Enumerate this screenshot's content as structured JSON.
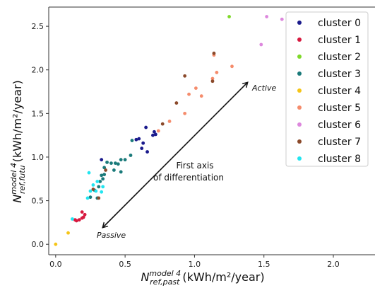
{
  "chart_data": {
    "type": "scatter",
    "xlabel": "(kWh/m²/year)",
    "xlabel_math": {
      "base": "N",
      "sup": "model 4",
      "sub": "ref,past"
    },
    "ylabel": "(kWh/m²/year)",
    "ylabel_math": {
      "base": "N",
      "sup": "model 4",
      "sub": "ref,futu"
    },
    "xlim": [
      -0.05,
      2.3
    ],
    "ylim": [
      -0.12,
      2.72
    ],
    "xticks": [
      "0.0",
      "0.5",
      "1.0",
      "1.5",
      "2.0"
    ],
    "xtick_values": [
      0,
      0.5,
      1.0,
      1.5,
      2.0
    ],
    "yticks": [
      "0.0",
      "0.5",
      "1.0",
      "1.5",
      "2.0",
      "2.5"
    ],
    "ytick_values": [
      0,
      0.5,
      1.0,
      1.5,
      2.0,
      2.5
    ],
    "grid": false,
    "legend_position": "top-right",
    "annotations": {
      "axis_text_line1": "First axis",
      "axis_text_line2": "of differentiation",
      "active": "Active",
      "passive": "Passive"
    },
    "series": [
      {
        "name": "cluster 0",
        "color": "#1a1a8c",
        "points": [
          [
            0.33,
            0.97
          ],
          [
            0.58,
            1.2
          ],
          [
            0.6,
            1.21
          ],
          [
            0.63,
            1.16
          ],
          [
            0.65,
            1.34
          ],
          [
            0.66,
            1.06
          ],
          [
            0.7,
            1.25
          ],
          [
            0.71,
            1.29
          ],
          [
            0.72,
            1.26
          ],
          [
            0.62,
            1.1
          ]
        ]
      },
      {
        "name": "cluster 1",
        "color": "#d7193f",
        "points": [
          [
            0.14,
            0.28
          ],
          [
            0.17,
            0.28
          ],
          [
            0.19,
            0.3
          ],
          [
            0.19,
            0.37
          ],
          [
            0.21,
            0.34
          ],
          [
            0.2,
            0.31
          ],
          [
            0.15,
            0.27
          ]
        ]
      },
      {
        "name": "cluster 2",
        "color": "#7fd92a",
        "points": [
          [
            1.25,
            2.61
          ]
        ]
      },
      {
        "name": "cluster 3",
        "color": "#1a7a7a",
        "points": [
          [
            0.25,
            0.54
          ],
          [
            0.28,
            0.62
          ],
          [
            0.31,
            0.66
          ],
          [
            0.32,
            0.72
          ],
          [
            0.33,
            0.79
          ],
          [
            0.35,
            0.8
          ],
          [
            0.35,
            0.88
          ],
          [
            0.37,
            0.94
          ],
          [
            0.4,
            0.93
          ],
          [
            0.42,
            0.85
          ],
          [
            0.43,
            0.93
          ],
          [
            0.45,
            0.92
          ],
          [
            0.47,
            0.83
          ],
          [
            0.47,
            0.97
          ],
          [
            0.5,
            0.97
          ],
          [
            0.54,
            1.02
          ],
          [
            0.55,
            1.19
          ],
          [
            0.3,
            0.53
          ],
          [
            0.34,
            0.75
          ]
        ]
      },
      {
        "name": "cluster 4",
        "color": "#f5c518",
        "points": [
          [
            0.0,
            0.0
          ],
          [
            0.09,
            0.13
          ]
        ]
      },
      {
        "name": "cluster 5",
        "color": "#f58c6c",
        "points": [
          [
            0.93,
            1.5
          ],
          [
            0.96,
            1.72
          ],
          [
            1.01,
            1.79
          ],
          [
            1.05,
            1.7
          ],
          [
            1.13,
            1.9
          ],
          [
            1.14,
            2.17
          ],
          [
            1.16,
            1.97
          ],
          [
            1.27,
            2.04
          ],
          [
            0.74,
            1.3
          ],
          [
            0.82,
            1.41
          ]
        ]
      },
      {
        "name": "cluster 6",
        "color": "#dd88dd",
        "points": [
          [
            1.48,
            2.29
          ],
          [
            1.52,
            2.61
          ],
          [
            1.63,
            2.58
          ]
        ]
      },
      {
        "name": "cluster 7",
        "color": "#8b4a2b",
        "points": [
          [
            0.27,
            0.63
          ],
          [
            0.31,
            0.53
          ],
          [
            0.77,
            1.38
          ],
          [
            0.87,
            1.62
          ],
          [
            0.93,
            1.93
          ],
          [
            1.13,
            1.87
          ],
          [
            1.14,
            2.19
          ],
          [
            0.36,
            0.85
          ]
        ]
      },
      {
        "name": "cluster 8",
        "color": "#22e5f0",
        "points": [
          [
            0.12,
            0.29
          ],
          [
            0.23,
            0.53
          ],
          [
            0.24,
            0.82
          ],
          [
            0.25,
            0.61
          ],
          [
            0.27,
            0.68
          ],
          [
            0.29,
            0.61
          ],
          [
            0.3,
            0.72
          ],
          [
            0.33,
            0.6
          ],
          [
            0.34,
            0.66
          ]
        ]
      }
    ]
  }
}
